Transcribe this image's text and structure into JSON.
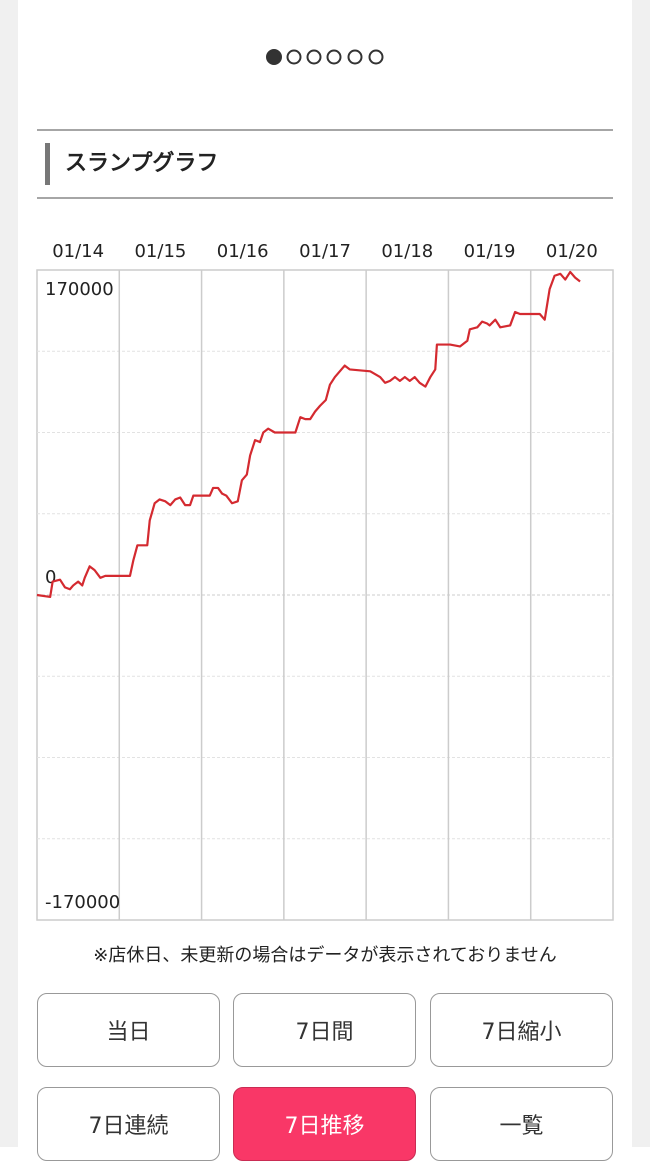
{
  "section_title": "スランプグラフ",
  "chart_data": {
    "type": "line",
    "categories": [
      "01/14",
      "01/15",
      "01/16",
      "01/17",
      "01/18",
      "01/19",
      "01/20"
    ],
    "xlim": [
      0,
      7
    ],
    "ylim": [
      -170000,
      170000
    ],
    "yticks": [
      -170000,
      0,
      170000
    ],
    "grid": true,
    "series": [
      {
        "color": "#d42a30",
        "x": [
          0,
          0.16,
          0.19,
          0.28,
          0.34,
          0.4,
          0.44,
          0.5,
          0.55,
          0.58,
          0.64,
          0.7,
          0.77,
          0.83,
          0.89,
          1.01,
          1.13,
          1.17,
          1.22,
          1.34,
          1.37,
          1.43,
          1.49,
          1.56,
          1.62,
          1.68,
          1.74,
          1.8,
          1.86,
          1.9,
          1.98,
          2.1,
          2.14,
          2.2,
          2.25,
          2.3,
          2.37,
          2.44,
          2.49,
          2.55,
          2.59,
          2.65,
          2.71,
          2.75,
          2.81,
          2.89,
          3.14,
          3.2,
          3.26,
          3.32,
          3.38,
          3.44,
          3.51,
          3.56,
          3.62,
          3.68,
          3.74,
          3.8,
          4.05,
          4.17,
          4.23,
          4.29,
          4.35,
          4.41,
          4.47,
          4.53,
          4.59,
          4.65,
          4.72,
          4.78,
          4.84,
          4.86,
          5.02,
          5.14,
          5.23,
          5.26,
          5.35,
          5.41,
          5.47,
          5.5,
          5.57,
          5.63,
          5.75,
          5.81,
          5.87,
          6.11,
          6.17,
          6.23,
          6.29,
          6.36,
          6.42,
          6.48,
          6.54,
          6.6
        ],
        "values": [
          0,
          -1000,
          7000,
          8000,
          4000,
          3000,
          5000,
          7000,
          5000,
          9000,
          15000,
          13000,
          9000,
          10000,
          10000,
          10000,
          10000,
          18000,
          26000,
          26000,
          39000,
          48000,
          50000,
          49000,
          47000,
          50000,
          51000,
          47000,
          47000,
          52000,
          52000,
          52000,
          56000,
          56000,
          53000,
          52000,
          48000,
          49000,
          60000,
          63000,
          73000,
          81000,
          80000,
          85000,
          87000,
          85000,
          85000,
          93000,
          92000,
          92000,
          96000,
          99000,
          102000,
          110000,
          114000,
          117000,
          120000,
          118000,
          117000,
          114000,
          111000,
          112000,
          114000,
          112000,
          114000,
          112000,
          114000,
          111000,
          109000,
          114000,
          118000,
          131000,
          131000,
          130000,
          133000,
          139000,
          140000,
          143000,
          142000,
          141000,
          144000,
          140000,
          141000,
          148000,
          147000,
          147000,
          144000,
          160000,
          167000,
          168000,
          165000,
          169000,
          166000,
          164000
        ]
      }
    ]
  },
  "note": "※店休日、未更新の場合はデータが表示されておりません",
  "buttons": [
    "当日",
    "7日間",
    "7日縮小",
    "7日連続",
    "7日推移",
    "一覧"
  ]
}
